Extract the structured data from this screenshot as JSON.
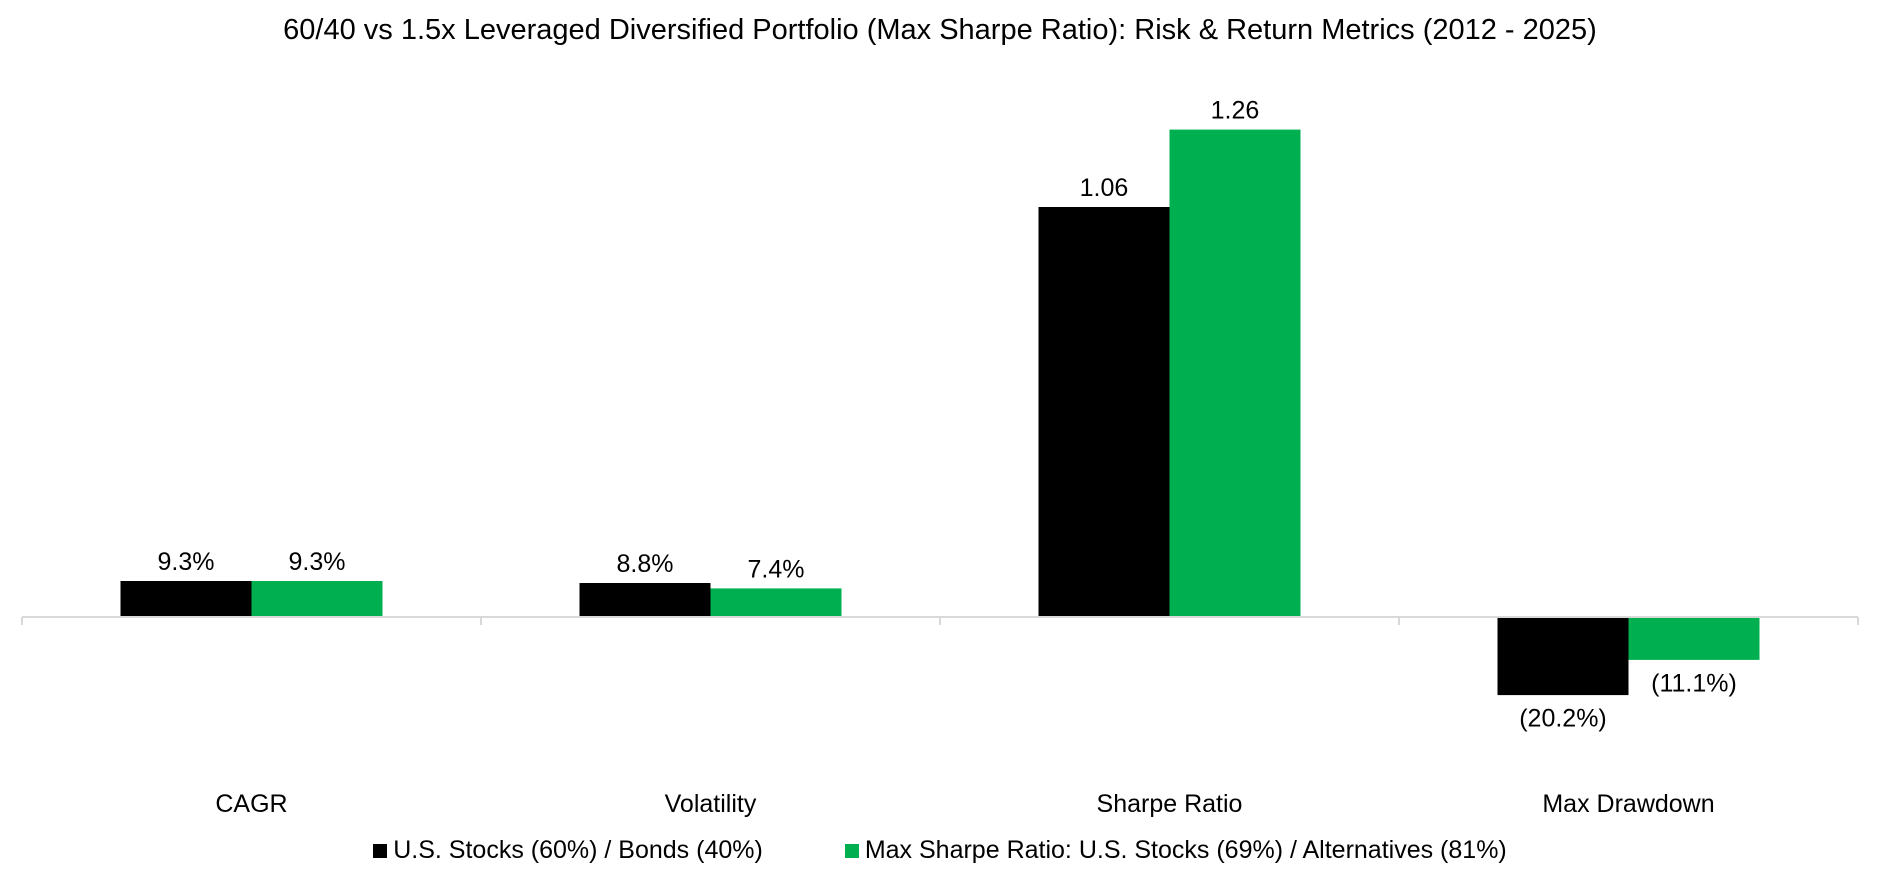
{
  "chart_data": {
    "type": "bar",
    "title": "60/40 vs 1.5x Leveraged Diversified Portfolio (Max Sharpe Ratio): Risk & Return Metrics (2012 - 2025)",
    "categories": [
      "CAGR",
      "Volatility",
      "Sharpe Ratio",
      "Max Drawdown"
    ],
    "series": [
      {
        "name": "U.S. Stocks (60%) / Bonds (40%)",
        "color": "#000000",
        "values": [
          0.093,
          0.088,
          1.06,
          -0.202
        ],
        "labels": [
          "9.3%",
          "8.8%",
          "1.06",
          "(20.2%)"
        ]
      },
      {
        "name": "Max Sharpe Ratio: U.S. Stocks (69%) / Alternatives (81%)",
        "color": "#00B050",
        "values": [
          0.093,
          0.074,
          1.26,
          -0.111
        ],
        "labels": [
          "9.3%",
          "7.4%",
          "1.26",
          "(11.1%)"
        ]
      }
    ],
    "xlabel": "",
    "ylabel": "",
    "ylim": [
      -0.45,
      1.4
    ],
    "grid": false,
    "legend_position": "bottom",
    "axis_color": "#D9D9D9"
  }
}
